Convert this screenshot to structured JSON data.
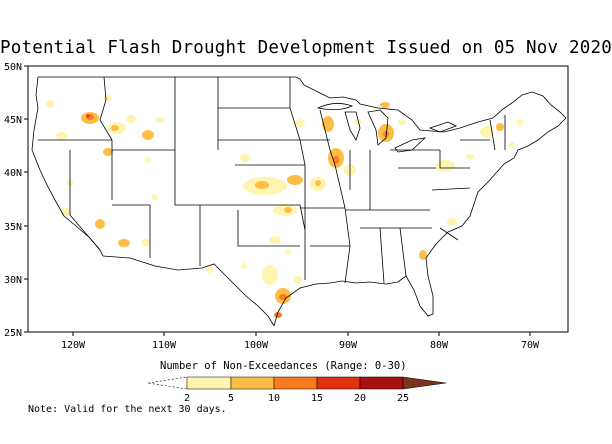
{
  "title": "Potential Flash Drought Development Issued on 05 Nov 2020",
  "lat_labels": [
    "50N",
    "45N",
    "40N",
    "35N",
    "30N",
    "25N"
  ],
  "lon_labels": [
    "120W",
    "110W",
    "100W",
    "90W",
    "80W",
    "70W"
  ],
  "legend": {
    "title": "Number of Non-Exceedances (Range: 0-30)",
    "ticks": [
      "2",
      "5",
      "10",
      "15",
      "20",
      "25"
    ],
    "colors": [
      "#ffffff",
      "#fff5b0",
      "#fdbe47",
      "#f87b1e",
      "#e33010",
      "#aa1010",
      "#7a3420"
    ]
  },
  "note": "Note: Valid for the next 30 days."
}
